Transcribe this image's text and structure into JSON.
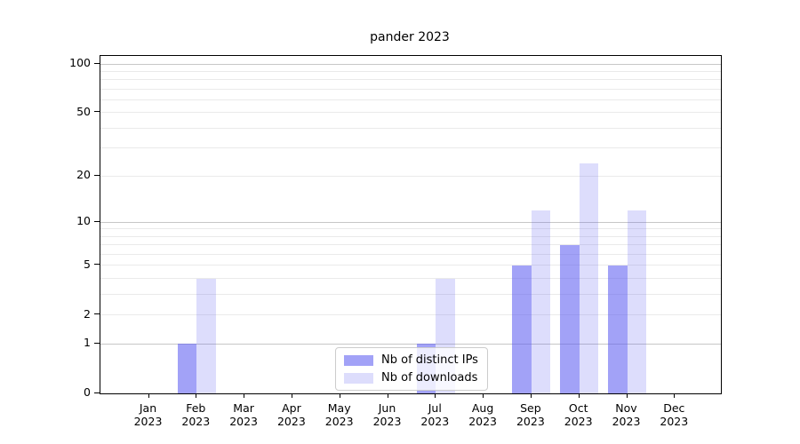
{
  "title": "pander 2023",
  "chart_data": {
    "type": "bar",
    "title": "pander 2023",
    "categories": [
      "Jan 2023",
      "Feb 2023",
      "Mar 2023",
      "Apr 2023",
      "May 2023",
      "Jun 2023",
      "Jul 2023",
      "Aug 2023",
      "Sep 2023",
      "Oct 2023",
      "Nov 2023",
      "Dec 2023"
    ],
    "series": [
      {
        "name": "Nb of distinct IPs",
        "color": "rgba(86,86,240,0.55)",
        "values": [
          0,
          1,
          0,
          0,
          0,
          0,
          1,
          0,
          5,
          7,
          5,
          0
        ]
      },
      {
        "name": "Nb of downloads",
        "color": "rgba(86,86,240,0.20)",
        "values": [
          0,
          4,
          0,
          0,
          0,
          0,
          4,
          0,
          12,
          24,
          12,
          0
        ]
      }
    ],
    "yscale": "log1p",
    "ylim": [
      0,
      112
    ],
    "yticks": [
      0,
      1,
      2,
      5,
      10,
      20,
      50,
      100
    ],
    "ytick_labels": [
      "0",
      "1",
      "2",
      "5",
      "10",
      "20",
      "50",
      "100"
    ],
    "grid": {
      "orientation": "horizontal",
      "major": [
        1,
        10,
        100
      ],
      "minor": [
        2,
        3,
        4,
        5,
        6,
        7,
        8,
        9,
        20,
        30,
        40,
        50,
        60,
        70,
        80,
        90
      ],
      "major_color": "#c7c7c7",
      "minor_color": "#eaeaea"
    },
    "legend": {
      "position": "lower center",
      "labels": [
        "Nb of distinct IPs",
        "Nb of downloads"
      ]
    },
    "xlabel": "",
    "ylabel": ""
  }
}
